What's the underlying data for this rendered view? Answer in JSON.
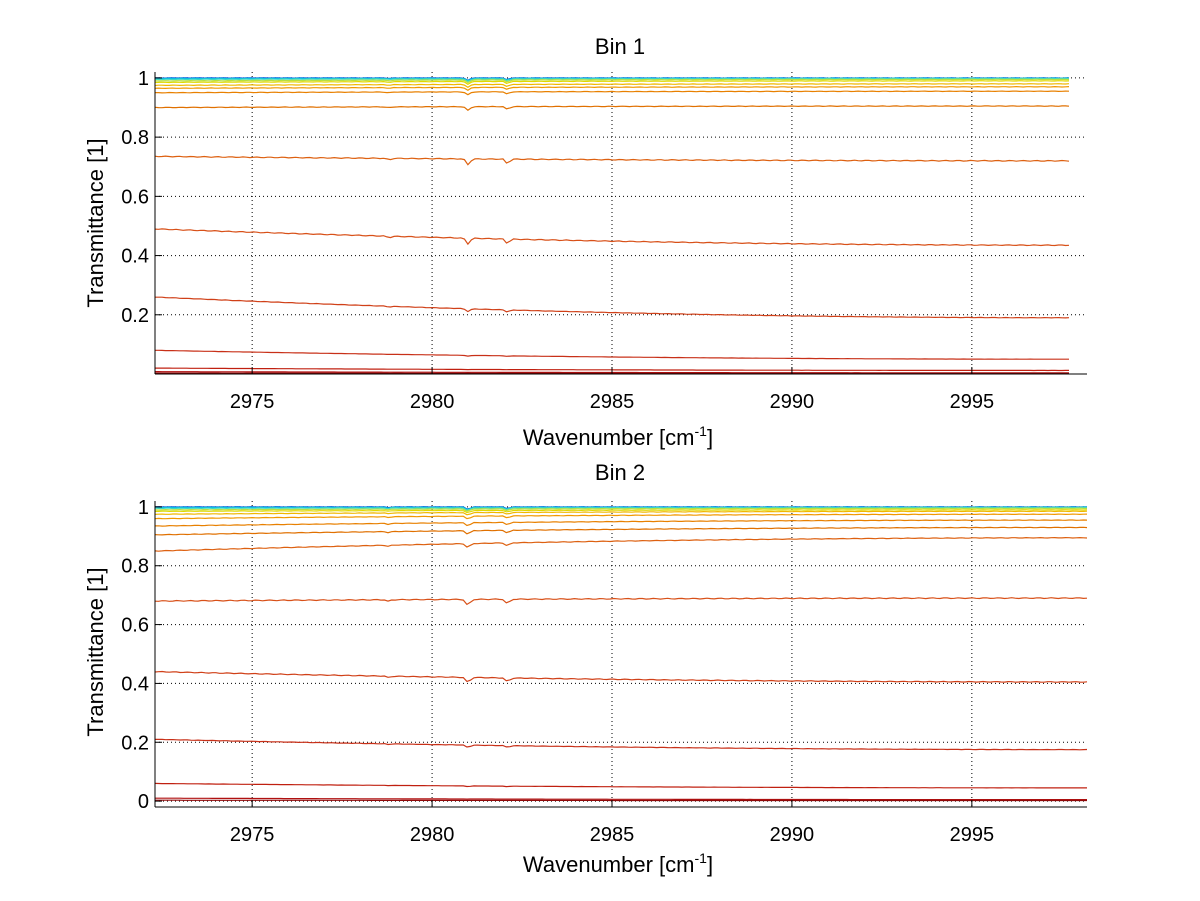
{
  "chart_data": [
    {
      "type": "line",
      "title": "Bin 1",
      "xlabel": "Wavenumber [cm",
      "xlabel_sup": "-1",
      "xlabel_close": "]",
      "ylabel": "Transmittance [1]",
      "xlim": [
        2972.3,
        2998.2
      ],
      "ylim": [
        0,
        1.02
      ],
      "xticks": [
        2975,
        2980,
        2985,
        2990,
        2995
      ],
      "xtick_labels": [
        "2975",
        "2980",
        "2985",
        "2990",
        "2995"
      ],
      "yticks": [
        0.2,
        0.4,
        0.6,
        0.8,
        1
      ],
      "ytick_labels": [
        "0.2",
        "0.4",
        "0.6",
        "0.8",
        "1"
      ],
      "grid": true,
      "x_range": [
        2972.3,
        2997.7
      ],
      "series": [
        {
          "color": "#0055e0",
          "start": 1.0,
          "end": 1.0
        },
        {
          "color": "#00b8e8",
          "start": 0.998,
          "end": 0.999
        },
        {
          "color": "#40d8c0",
          "start": 0.995,
          "end": 0.998
        },
        {
          "color": "#b8e040",
          "start": 0.99,
          "end": 0.995
        },
        {
          "color": "#e0d800",
          "start": 0.985,
          "end": 0.99
        },
        {
          "color": "#f0b800",
          "start": 0.975,
          "end": 0.98
        },
        {
          "color": "#f09800",
          "start": 0.965,
          "end": 0.97
        },
        {
          "color": "#e88000",
          "start": 0.95,
          "end": 0.955
        },
        {
          "color": "#e07000",
          "start": 0.9,
          "end": 0.905
        },
        {
          "color": "#dd6010",
          "start": 0.735,
          "end": 0.72
        },
        {
          "color": "#d85018",
          "start": 0.49,
          "end": 0.435
        },
        {
          "color": "#d04018",
          "start": 0.26,
          "end": 0.19
        },
        {
          "color": "#c83018",
          "start": 0.08,
          "end": 0.05
        },
        {
          "color": "#c02010",
          "start": 0.02,
          "end": 0.012
        },
        {
          "color": "#b01010",
          "start": 0.008,
          "end": 0.004
        },
        {
          "color": "#900808",
          "start": 0.003,
          "end": 0.002
        }
      ]
    },
    {
      "type": "line",
      "title": "Bin 2",
      "xlabel": "Wavenumber [cm",
      "xlabel_sup": "-1",
      "xlabel_close": "]",
      "ylabel": "Transmittance [1]",
      "xlim": [
        2972.3,
        2998.2
      ],
      "ylim": [
        -0.02,
        1.02
      ],
      "xticks": [
        2975,
        2980,
        2985,
        2990,
        2995
      ],
      "xtick_labels": [
        "2975",
        "2980",
        "2985",
        "2990",
        "2995"
      ],
      "yticks": [
        0,
        0.2,
        0.4,
        0.6,
        0.8,
        1
      ],
      "ytick_labels": [
        "0",
        "0.2",
        "0.4",
        "0.6",
        "0.8",
        "1"
      ],
      "grid": true,
      "x_range": [
        2972.3,
        2998.2
      ],
      "series": [
        {
          "color": "#0055e0",
          "start": 1.0,
          "end": 1.0
        },
        {
          "color": "#00b8e8",
          "start": 0.998,
          "end": 0.999
        },
        {
          "color": "#40d8c0",
          "start": 0.995,
          "end": 0.998
        },
        {
          "color": "#b8e040",
          "start": 0.99,
          "end": 0.995
        },
        {
          "color": "#e0d800",
          "start": 0.985,
          "end": 0.99
        },
        {
          "color": "#f0b800",
          "start": 0.975,
          "end": 0.985
        },
        {
          "color": "#f09800",
          "start": 0.96,
          "end": 0.975
        },
        {
          "color": "#e88000",
          "start": 0.935,
          "end": 0.955
        },
        {
          "color": "#e07000",
          "start": 0.905,
          "end": 0.93
        },
        {
          "color": "#dd6010",
          "start": 0.85,
          "end": 0.895
        },
        {
          "color": "#d85018",
          "start": 0.68,
          "end": 0.69
        },
        {
          "color": "#d04018",
          "start": 0.44,
          "end": 0.405
        },
        {
          "color": "#c83018",
          "start": 0.21,
          "end": 0.175
        },
        {
          "color": "#c02010",
          "start": 0.06,
          "end": 0.045
        },
        {
          "color": "#b01010",
          "start": 0.01,
          "end": 0.005
        },
        {
          "color": "#900808",
          "start": 0.003,
          "end": 0.002
        }
      ]
    }
  ]
}
